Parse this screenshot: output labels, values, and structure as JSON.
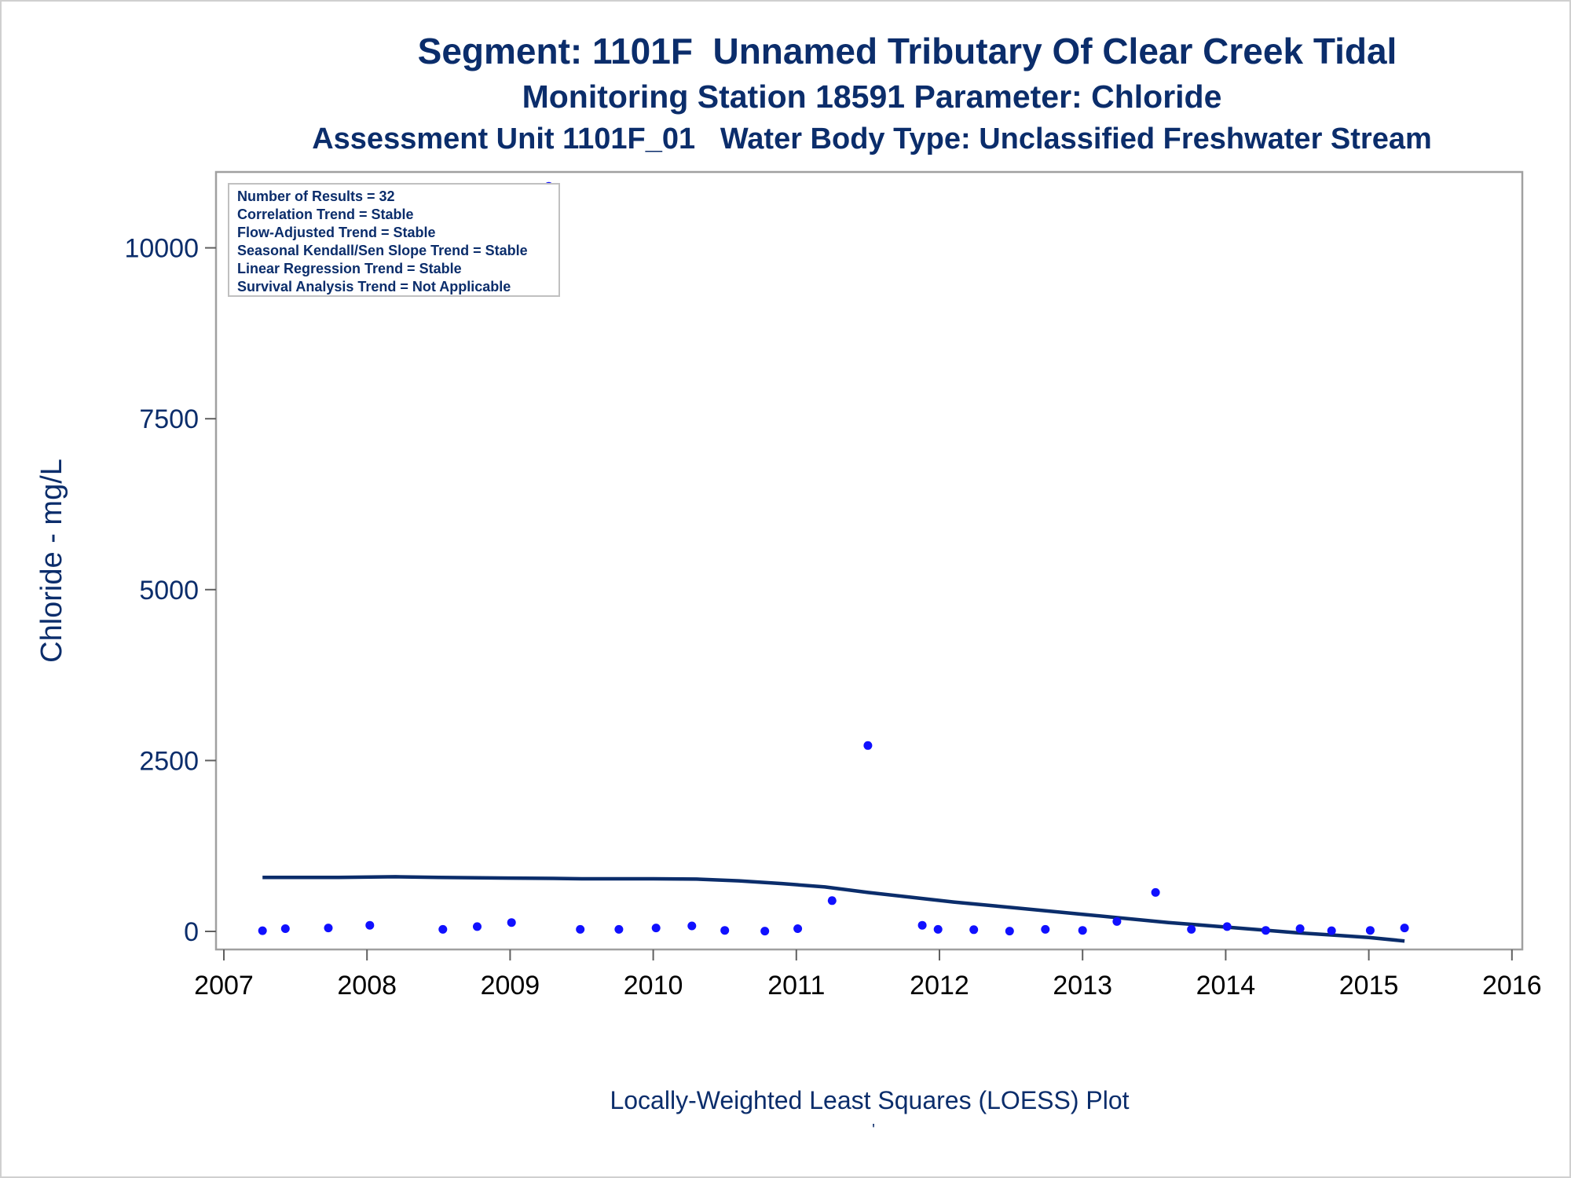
{
  "chart_data": {
    "type": "scatter",
    "title": "Segment: 1101F  Unnamed Tributary Of Clear Creek Tidal",
    "subtitle": "Monitoring Station 18591 Parameter: Chloride",
    "subtitle2": "Assessment Unit 1101F_01   Water Body Type: Unclassified Freshwater Stream",
    "ylabel": "Chloride - mg/L",
    "xlabel": "Locally-Weighted Least Squares (LOESS) Plot",
    "footnote": "'",
    "xlim": [
      2007,
      2016
    ],
    "ylim": [
      -250,
      11000
    ],
    "x_ticks": [
      2007,
      2008,
      2009,
      2010,
      2011,
      2012,
      2013,
      2014,
      2015,
      2016
    ],
    "y_ticks": [
      0,
      2500,
      5000,
      7500,
      10000
    ],
    "legend": {
      "placement": "top-left",
      "entries": [
        "Number of Results = 32",
        "Correlation Trend = Stable",
        "Flow-Adjusted Trend = Stable",
        "Seasonal Kendall/Sen Slope Trend = Stable",
        "Linear Regression Trend = Stable",
        "Survival Analysis Trend = Not Applicable"
      ]
    },
    "series": [
      {
        "type": "scatter",
        "color": "#1010ff",
        "points": [
          [
            2007.27,
            10
          ],
          [
            2007.43,
            40
          ],
          [
            2007.73,
            50
          ],
          [
            2008.02,
            90
          ],
          [
            2008.53,
            30
          ],
          [
            2008.77,
            70
          ],
          [
            2009.01,
            130
          ],
          [
            2009.27,
            10900
          ],
          [
            2009.49,
            30
          ],
          [
            2009.76,
            30
          ],
          [
            2010.02,
            50
          ],
          [
            2010.27,
            80
          ],
          [
            2010.5,
            15
          ],
          [
            2010.78,
            5
          ],
          [
            2011.01,
            40
          ],
          [
            2011.25,
            450
          ],
          [
            2011.5,
            2720
          ],
          [
            2011.88,
            90
          ],
          [
            2011.99,
            30
          ],
          [
            2012.24,
            25
          ],
          [
            2012.49,
            5
          ],
          [
            2012.74,
            30
          ],
          [
            2013.0,
            15
          ],
          [
            2013.24,
            145
          ],
          [
            2013.51,
            570
          ],
          [
            2013.76,
            30
          ],
          [
            2014.01,
            70
          ],
          [
            2014.28,
            15
          ],
          [
            2014.52,
            40
          ],
          [
            2014.74,
            10
          ],
          [
            2015.01,
            15
          ],
          [
            2015.25,
            50
          ]
        ]
      },
      {
        "type": "line",
        "color": "#0b2d6b",
        "points": [
          [
            2007.27,
            790
          ],
          [
            2007.8,
            790
          ],
          [
            2008.2,
            800
          ],
          [
            2008.5,
            790
          ],
          [
            2009.0,
            780
          ],
          [
            2009.3,
            775
          ],
          [
            2009.5,
            770
          ],
          [
            2010.0,
            770
          ],
          [
            2010.3,
            765
          ],
          [
            2010.6,
            740
          ],
          [
            2010.9,
            700
          ],
          [
            2011.2,
            650
          ],
          [
            2011.5,
            570
          ],
          [
            2011.8,
            500
          ],
          [
            2012.1,
            430
          ],
          [
            2012.4,
            370
          ],
          [
            2012.7,
            310
          ],
          [
            2013.0,
            250
          ],
          [
            2013.3,
            190
          ],
          [
            2013.6,
            130
          ],
          [
            2013.9,
            80
          ],
          [
            2014.2,
            30
          ],
          [
            2014.5,
            -20
          ],
          [
            2014.8,
            -60
          ],
          [
            2015.0,
            -90
          ],
          [
            2015.25,
            -140
          ]
        ]
      }
    ]
  }
}
